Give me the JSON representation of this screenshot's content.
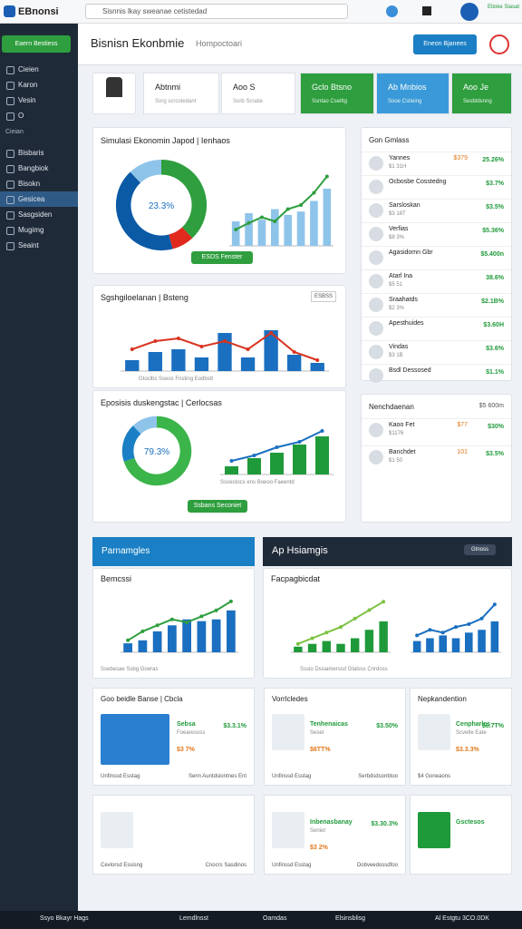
{
  "topbar": {
    "brand": "EBnonsi",
    "search": "Sisnnis lkay sweanae cetistedad",
    "badge": "Etioke Siasat"
  },
  "sidebar": {
    "button": "Eaern Bestiess",
    "items": [
      "Cieien",
      "Karon",
      "Vesin",
      "O"
    ],
    "section": "Cieian",
    "items2": [
      "Bisbaris",
      "Bangbiok",
      "Bisokn",
      "Gesicea",
      "Sasgsiden",
      "Mugimg",
      "Seaint"
    ],
    "active": "Gesicea"
  },
  "header": {
    "title": "Bisnisn Ekonbmie",
    "subtitle": "Hompoctoari",
    "button": "Eneon Bjanees"
  },
  "stats": [
    {
      "title": "Abtnmi",
      "sub": "Sorg scrcotedant",
      "color": "#ffffff"
    },
    {
      "title": "Aoo S",
      "sub": "Sorb Scratie",
      "color": "#ffffff"
    },
    {
      "title": "Gclo Btsno",
      "sub": "Ssntao Cseittg",
      "color": "#2e9e3e"
    },
    {
      "title": "Ab Mnbios",
      "sub": "Sooe Cstieing",
      "color": "#3a9ad9"
    },
    {
      "title": "Aoo Je",
      "sub": "Sesbtdsnng",
      "color": "#2e9e3e"
    }
  ],
  "charts": [
    {
      "title": "Simulasi Ekonomin Japod | Ienhaos",
      "donut_label": "23.3%",
      "donut": [
        38,
        8,
        42,
        12
      ],
      "donut_colors": [
        "#2e9e3e",
        "#e02a1d",
        "#0b5aa6",
        "#8ec4ea"
      ],
      "bars": [
        30,
        40,
        32,
        45,
        38,
        42,
        55,
        70
      ],
      "line": [
        20,
        28,
        35,
        30,
        45,
        50,
        65,
        85
      ],
      "ylim": [
        0,
        100
      ],
      "bar_color": "#8ec4ea",
      "line_color": "#2e9e3e",
      "button": "ESDS Fenster"
    },
    {
      "title": "Sgshgiloelanan | Bsteng",
      "tag": "ESBSS",
      "legend": "Gtoclbs Sseos Fnsting   Eodbstt",
      "bars": [
        20,
        35,
        40,
        25,
        70,
        25,
        75,
        30,
        15
      ],
      "line": [
        40,
        55,
        60,
        45,
        55,
        40,
        70,
        35,
        20
      ],
      "ylim": [
        0,
        100
      ],
      "bar_color": "#1a6fc0",
      "line_color": "#d9331f"
    },
    {
      "title": "Eposisis duskengstac | Cerlocsas",
      "donut_label": "79.3%",
      "donut": [
        70,
        18,
        12
      ],
      "donut_colors": [
        "#3bb54a",
        "#1a7fc4",
        "#8ec4ea"
      ],
      "legend": "Ssoestocs ens Boeoo Faeentd",
      "bars": [
        15,
        30,
        40,
        55,
        70
      ],
      "line": [
        25,
        35,
        50,
        60,
        80
      ],
      "ylim": [
        0,
        100
      ],
      "bar_color": "#1f9a3a",
      "line_color": "#1a6fc0",
      "button": "Ssbans Seconiet"
    },
    {
      "title": "Bemcssi",
      "legend": "Ssebesae   Ssbg   Goeras",
      "bars": [
        15,
        20,
        35,
        45,
        55,
        52,
        55,
        70
      ],
      "line": [
        20,
        35,
        45,
        55,
        50,
        60,
        70,
        85
      ],
      "ylim": [
        0,
        100
      ],
      "bar_color": "#1a6fc0",
      "line_color": "#2e9e3e"
    },
    {
      "title": "Facpagbicdat",
      "legend": "Sssio   Dssiamerssd   Gtalsss   Cnrdoss",
      "bars": [
        10,
        15,
        20,
        15,
        25,
        40,
        55
      ],
      "line": [
        15,
        25,
        35,
        45,
        60,
        75,
        90
      ],
      "ylim": [
        0,
        100
      ],
      "bar_color": "#1f9a3a",
      "line_color": "#7cc242"
    },
    {
      "title": "Facpagbicdat",
      "bars": [
        20,
        25,
        30,
        25,
        35,
        40,
        55
      ],
      "line": [
        30,
        40,
        35,
        45,
        50,
        60,
        85
      ],
      "ylim": [
        0,
        100
      ],
      "bar_color": "#1a6fc0",
      "line_color": "#1a6fc0"
    }
  ],
  "lists": [
    {
      "title": "Gon Gmlass",
      "rows": [
        {
          "name": "Yannes",
          "sub": "$1 31H",
          "v1": "$379",
          "v2": "25.26%"
        },
        {
          "name": "Ocbosbe Cosstedng",
          "sub": "",
          "v1": "",
          "v2": "$3.7%"
        },
        {
          "name": "Sarsloskan",
          "sub": "$3 18T",
          "v1": "",
          "v2": "$3.5%"
        },
        {
          "name": "Verfias",
          "sub": "$8 3%",
          "v1": "",
          "v2": "$5.36%"
        },
        {
          "name": "Agasidomn Gbr",
          "sub": "",
          "v1": "",
          "v2": "$5.400n"
        },
        {
          "name": "Atarl Ina",
          "sub": "$5 51",
          "v1": "",
          "v2": "38.6%"
        },
        {
          "name": "Sraahatds",
          "sub": "$2 3%",
          "v1": "",
          "v2": "$2.1B%"
        },
        {
          "name": "Apesthuides",
          "sub": "",
          "v1": "",
          "v2": "$3.60H"
        },
        {
          "name": "Vindas",
          "sub": "$3 1B",
          "v1": "",
          "v2": "$3.6%"
        },
        {
          "name": "Bsdl   Dessosed",
          "sub": "",
          "v1": "",
          "v2": "$1.1%"
        }
      ]
    },
    {
      "title": "Nenchdaenan",
      "rows": [
        {
          "name": "Kaoo Fet",
          "sub": "$1176",
          "v1": "$77",
          "v2": "$30%"
        },
        {
          "name": "Banchdet",
          "sub": "$1 50",
          "v1": "101",
          "v2": "$3.5%"
        }
      ],
      "total": "$5 600m"
    }
  ],
  "bands": [
    "Parnamgles",
    "Ap Hsiamgis",
    "Gtnoss"
  ],
  "tiles": [
    {
      "title": "Goo beidle Banse | Cbcla",
      "name": "Sebsa",
      "sub": "Foearesoss",
      "v1": "$3.3.1%",
      "v2": "$3 7%",
      "foot": "Unfinssd Esstag",
      "foot2": "Senn Auntdsiontnes Ent"
    },
    {
      "title": "Vorrlcledes",
      "name": "Tenhenaicas",
      "sub": "Seset",
      "v1": "$3.50%",
      "v2": "$6TT%",
      "foot": "Unfinssd Esstag",
      "foot2": "Serbdsdsonbtoo"
    },
    {
      "title": "Nepkandention",
      "name": "Cenpharlcs",
      "sub": "Scvetle Eate",
      "v1": "$6.7T%",
      "v2": "$3.3.3%",
      "foot": "$4 Goneaons",
      "foot2": ""
    },
    {
      "title": "",
      "name": "",
      "sub": "",
      "v1": "",
      "v2": "",
      "foot": "Cevlorsd Essisng",
      "foot2": "Cnocrs Sasdinos"
    },
    {
      "title": "",
      "name": "Inbenasbanay",
      "sub": "Seniet",
      "v1": "$3.30.3%",
      "v2": "$3 2%",
      "foot": "Unfinssd Esstag",
      "foot2": "Dobveedossdfoo"
    },
    {
      "title": "",
      "name": "Gsctesos",
      "sub": "",
      "v1": "",
      "v2": "",
      "foot": "",
      "foot2": ""
    }
  ],
  "taskbar": [
    "Ssyo Bkayr Hags",
    "Lemdlnsst",
    "Oamdas",
    "Elsinsblisg",
    "Al Estgtu 3CO.0DK"
  ]
}
